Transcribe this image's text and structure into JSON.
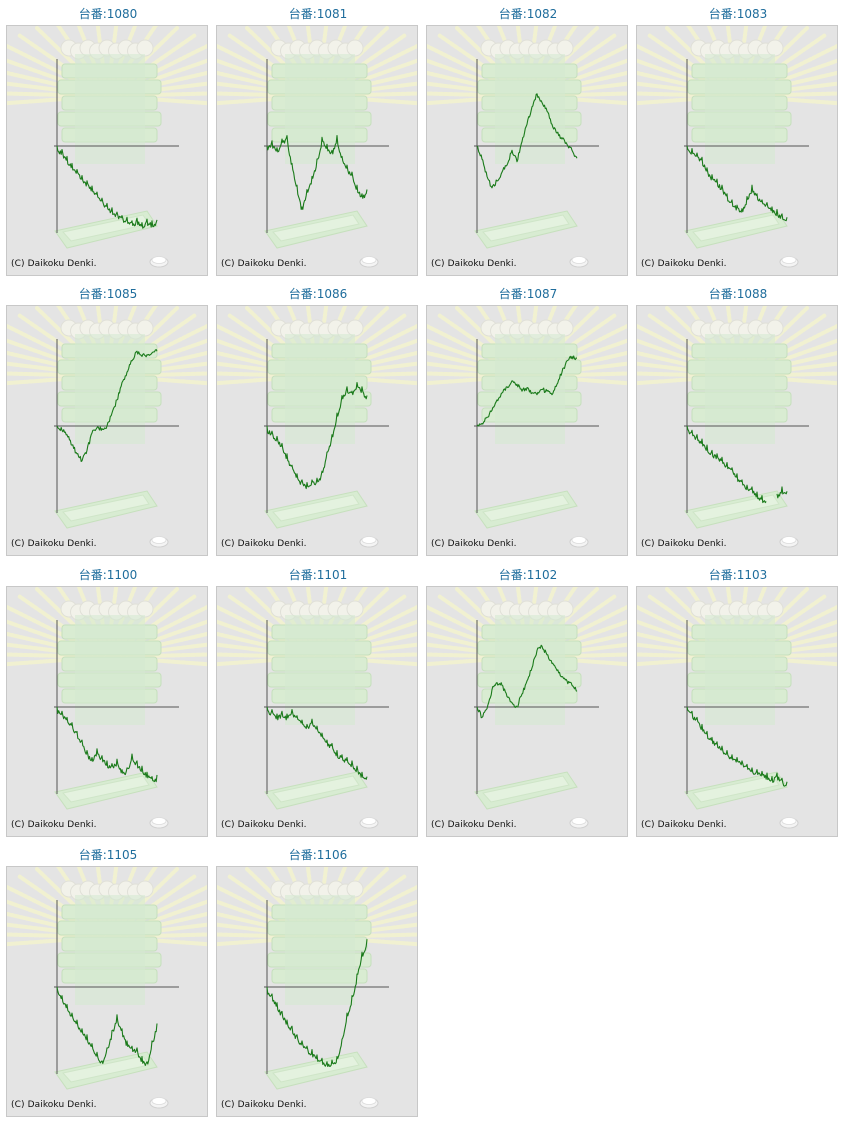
{
  "label_prefix": "台番:",
  "copyright": "(C) Daikoku Denki.",
  "line_color": "#1a7a1a",
  "title_color": "#1f6d9c",
  "machines": [
    {
      "title": "台番:1080",
      "graph": [
        0,
        -4,
        -12,
        -20,
        -27,
        -34,
        -40,
        -46,
        -53,
        -60,
        -66,
        -71,
        -76,
        -80,
        -82,
        -86,
        -83,
        -88,
        -84,
        -86,
        -85
      ]
    },
    {
      "title": "台番:1081",
      "graph": [
        0,
        6,
        -2,
        8,
        12,
        -20,
        -45,
        -70,
        -50,
        -35,
        -15,
        10,
        2,
        -5,
        12,
        -12,
        -22,
        -30,
        -45,
        -55,
        -50
      ]
    },
    {
      "title": "台番:1082",
      "graph": [
        0,
        -15,
        -35,
        -48,
        -40,
        -30,
        -22,
        -5,
        -18,
        5,
        25,
        45,
        60,
        50,
        40,
        25,
        15,
        8,
        2,
        -5,
        -14
      ]
    },
    {
      "title": "台番:1083",
      "graph": [
        0,
        -3,
        -8,
        -13,
        -25,
        -33,
        -38,
        -45,
        -55,
        -62,
        -68,
        -72,
        -58,
        -45,
        -55,
        -62,
        -65,
        -70,
        -73,
        -78,
        -82
      ]
    },
    {
      "title": "台番:1085",
      "graph": [
        0,
        -5,
        -10,
        -22,
        -32,
        -40,
        -28,
        -8,
        -2,
        -3,
        0,
        15,
        30,
        50,
        62,
        75,
        86,
        80,
        82,
        84,
        86
      ]
    },
    {
      "title": "台番:1086",
      "graph": [
        0,
        -6,
        -12,
        -20,
        -32,
        -45,
        -55,
        -62,
        -65,
        -62,
        -60,
        -52,
        -30,
        -10,
        15,
        35,
        45,
        40,
        50,
        45,
        35
      ]
    },
    {
      "title": "台番:1087",
      "graph": [
        0,
        3,
        10,
        18,
        30,
        38,
        45,
        52,
        48,
        40,
        44,
        38,
        36,
        42,
        40,
        36,
        48,
        62,
        75,
        80,
        78
      ]
    },
    {
      "title": "台番:1088",
      "graph": [
        0,
        -5,
        -10,
        -15,
        -22,
        -28,
        -32,
        -36,
        -42,
        -48,
        -55,
        -62,
        -68,
        -70,
        -76,
        -80,
        -84,
        null,
        -78,
        -70,
        -75
      ]
    },
    {
      "title": "台番:1100",
      "graph": [
        0,
        -5,
        -12,
        -18,
        -28,
        -38,
        -50,
        -58,
        -48,
        -56,
        -62,
        -65,
        -60,
        -72,
        -70,
        -54,
        -62,
        -68,
        -75,
        -80,
        -78
      ]
    },
    {
      "title": "台番:1101",
      "graph": [
        0,
        -3,
        -8,
        -5,
        -8,
        -3,
        -10,
        -15,
        -20,
        -14,
        -22,
        -30,
        -38,
        -42,
        -50,
        -55,
        -58,
        -62,
        -68,
        -75,
        -80
      ]
    },
    {
      "title": "台番:1102",
      "graph": [
        0,
        -12,
        -2,
        20,
        28,
        25,
        12,
        5,
        0,
        15,
        30,
        45,
        65,
        70,
        60,
        50,
        42,
        35,
        30,
        25,
        18
      ]
    },
    {
      "title": "台番:1103",
      "graph": [
        0,
        -5,
        -12,
        -20,
        -28,
        -35,
        -40,
        -45,
        -50,
        -55,
        -58,
        -62,
        -66,
        -70,
        -72,
        -74,
        -76,
        -80,
        -76,
        -82,
        -86
      ]
    },
    {
      "title": "台番:1105",
      "graph": [
        0,
        -10,
        -20,
        -30,
        -38,
        -48,
        -55,
        -65,
        -75,
        -85,
        -70,
        -50,
        -32,
        -48,
        -62,
        -68,
        -70,
        -80,
        -86,
        -62,
        -42
      ]
    },
    {
      "title": "台番:1106",
      "graph": [
        0,
        -8,
        -18,
        -28,
        -38,
        -45,
        -55,
        -62,
        -68,
        -72,
        -78,
        -82,
        -86,
        -84,
        -80,
        -60,
        -30,
        -10,
        15,
        40,
        55
      ]
    }
  ]
}
